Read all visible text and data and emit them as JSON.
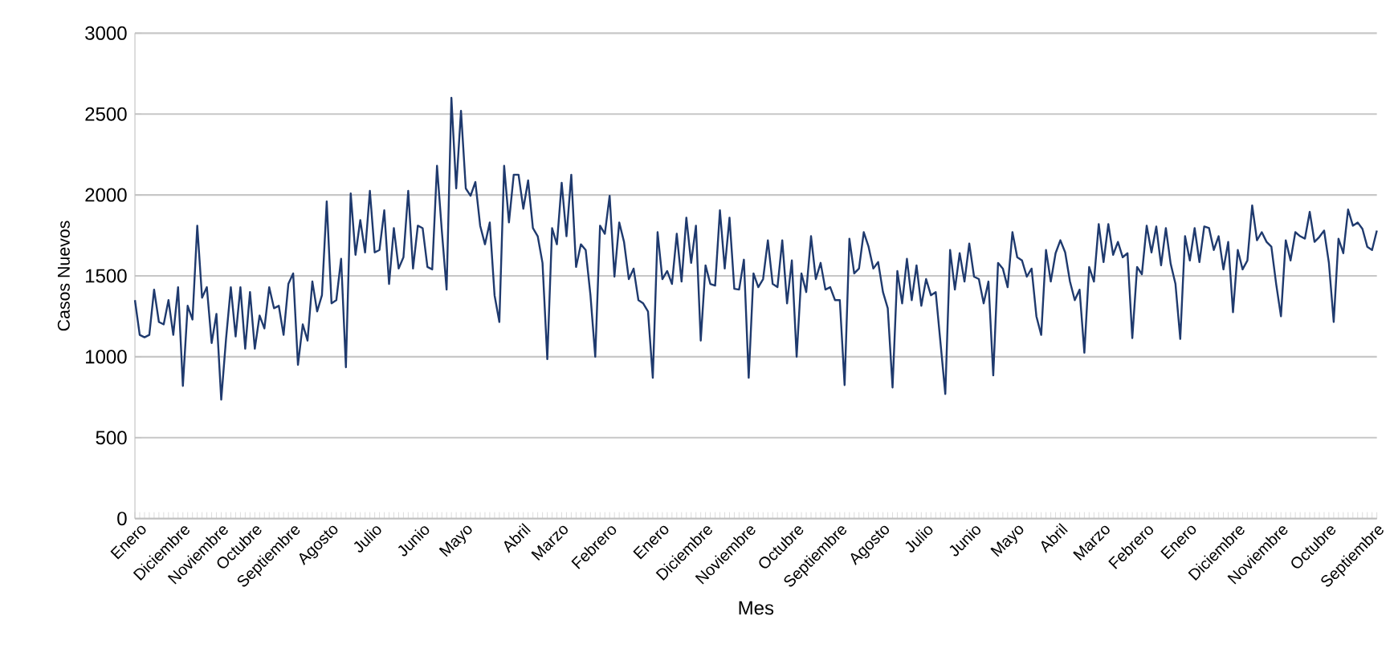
{
  "chart_data": {
    "type": "line",
    "xlabel": "Mes",
    "ylabel": "Casos Nuevos",
    "color": "#1f3a6e",
    "grid": "y",
    "ylim": [
      0,
      3000
    ],
    "yticks": [
      0,
      500,
      1000,
      1500,
      2000,
      2500,
      3000
    ],
    "categories": [
      null,
      "Enero",
      null,
      null,
      null,
      null,
      null,
      null,
      null,
      null,
      "Diciembre",
      null,
      null,
      null,
      null,
      null,
      null,
      null,
      "Noviembre",
      null,
      null,
      null,
      null,
      null,
      null,
      "Octubre",
      null,
      null,
      null,
      null,
      null,
      null,
      null,
      "Septiembre",
      null,
      null,
      null,
      null,
      null,
      null,
      null,
      "Agosto",
      null,
      null,
      null,
      null,
      null,
      null,
      null,
      null,
      "Julio",
      null,
      null,
      null,
      null,
      null,
      null,
      null,
      null,
      null,
      "Junio",
      null,
      null,
      null,
      null,
      null,
      null,
      null,
      null,
      "Mayo",
      null,
      null,
      null,
      null,
      null,
      null,
      null,
      null,
      null,
      null,
      null,
      "Abril",
      null,
      null,
      null,
      null,
      null,
      null,
      null,
      "Marzo",
      null,
      null,
      null,
      null,
      null,
      null,
      null,
      null,
      null,
      "Febrero",
      null,
      null,
      null,
      null,
      null,
      null,
      null,
      null,
      null,
      null,
      "Enero",
      null,
      null,
      null,
      null,
      null,
      null,
      null,
      null,
      "Diciembre",
      null,
      null,
      null,
      null,
      null,
      null,
      null,
      null,
      "Noviembre",
      null,
      null,
      null,
      null,
      null,
      null,
      null,
      null,
      null,
      "Octubre",
      null,
      null,
      null,
      null,
      null,
      null,
      null,
      null,
      "Septiembre",
      null,
      null,
      null,
      null,
      null,
      null,
      null,
      null,
      "Agosto",
      null,
      null,
      null,
      null,
      null,
      null,
      null,
      null,
      "Julio",
      null,
      null,
      null,
      null,
      null,
      null,
      null,
      null,
      null,
      "Junio",
      null,
      null,
      null,
      null,
      null,
      null,
      null,
      null,
      "Mayo",
      null,
      null,
      null,
      null,
      null,
      null,
      null,
      null,
      "Abril",
      null,
      null,
      null,
      null,
      null,
      null,
      null,
      null,
      "Marzo",
      null,
      null,
      null,
      null,
      null,
      null,
      null,
      null,
      "Febrero",
      null,
      null,
      null,
      null,
      null,
      null,
      null,
      null,
      "Enero",
      null,
      null,
      null,
      null,
      null,
      null,
      null,
      null,
      null,
      "Diciembre",
      null,
      null,
      null,
      null,
      null,
      null,
      null,
      null,
      "Noviembre",
      null,
      null,
      null,
      null,
      null,
      null,
      null,
      null,
      null,
      "Octubre",
      null,
      null,
      null,
      null,
      null,
      null,
      null,
      null,
      null,
      "Septiembre"
    ],
    "values": [
      1350,
      1135,
      1120,
      1135,
      1415,
      1215,
      1200,
      1350,
      1135,
      1430,
      820,
      1315,
      1230,
      1810,
      1365,
      1430,
      1085,
      1265,
      735,
      1110,
      1430,
      1125,
      1430,
      1050,
      1400,
      1050,
      1255,
      1175,
      1430,
      1300,
      1315,
      1135,
      1450,
      1515,
      950,
      1200,
      1100,
      1465,
      1280,
      1380,
      1960,
      1330,
      1350,
      1605,
      935,
      2010,
      1630,
      1845,
      1645,
      2025,
      1645,
      1660,
      1905,
      1450,
      1795,
      1545,
      1615,
      2025,
      1545,
      1810,
      1795,
      1555,
      1540,
      2180,
      1780,
      1415,
      2600,
      2040,
      2520,
      2040,
      1995,
      2080,
      1810,
      1695,
      1830,
      1380,
      1215,
      2180,
      1830,
      2125,
      2125,
      1915,
      2090,
      1795,
      1745,
      1580,
      985,
      1795,
      1695,
      2075,
      1745,
      2125,
      1555,
      1695,
      1660,
      1380,
      1000,
      1810,
      1760,
      1995,
      1495,
      1830,
      1710,
      1480,
      1545,
      1350,
      1330,
      1280,
      870,
      1770,
      1480,
      1530,
      1450,
      1760,
      1465,
      1860,
      1580,
      1810,
      1100,
      1565,
      1450,
      1440,
      1905,
      1545,
      1860,
      1420,
      1415,
      1600,
      870,
      1515,
      1430,
      1480,
      1720,
      1450,
      1430,
      1720,
      1330,
      1595,
      1000,
      1515,
      1400,
      1745,
      1480,
      1580,
      1415,
      1430,
      1350,
      1350,
      825,
      1730,
      1515,
      1545,
      1770,
      1680,
      1545,
      1585,
      1400,
      1300,
      810,
      1530,
      1330,
      1605,
      1350,
      1565,
      1315,
      1480,
      1380,
      1400,
      1085,
      770,
      1660,
      1415,
      1640,
      1465,
      1700,
      1495,
      1480,
      1330,
      1465,
      885,
      1580,
      1545,
      1430,
      1770,
      1615,
      1595,
      1495,
      1545,
      1250,
      1135,
      1660,
      1465,
      1640,
      1720,
      1645,
      1465,
      1350,
      1415,
      1025,
      1555,
      1465,
      1820,
      1585,
      1820,
      1630,
      1710,
      1615,
      1640,
      1115,
      1555,
      1510,
      1810,
      1645,
      1805,
      1565,
      1795,
      1575,
      1450,
      1110,
      1745,
      1595,
      1795,
      1585,
      1805,
      1795,
      1660,
      1745,
      1540,
      1710,
      1275,
      1660,
      1540,
      1595,
      1935,
      1720,
      1770,
      1710,
      1680,
      1450,
      1250,
      1720,
      1595,
      1770,
      1745,
      1730,
      1895,
      1710,
      1740,
      1780,
      1580,
      1215,
      1730,
      1640,
      1910,
      1810,
      1830,
      1790,
      1680,
      1660,
      1780
    ]
  }
}
